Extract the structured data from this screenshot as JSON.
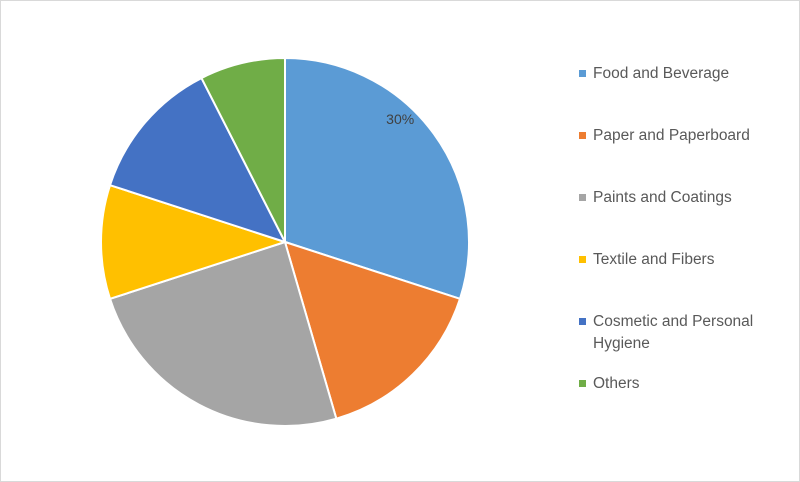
{
  "chart_data": {
    "type": "pie",
    "title": "",
    "legend_position": "right",
    "slices": [
      {
        "label": "Food and Beverage",
        "value": 30,
        "color": "#5b9bd5",
        "data_label": "30%"
      },
      {
        "label": "Paper and Paperboard",
        "value": 15.5,
        "color": "#ed7d31",
        "data_label": ""
      },
      {
        "label": "Paints and Coatings",
        "value": 24.5,
        "color": "#a5a5a5",
        "data_label": ""
      },
      {
        "label": "Textile and Fibers",
        "value": 10,
        "color": "#ffc000",
        "data_label": ""
      },
      {
        "label": "Cosmetic and Personal Hygiene",
        "value": 12.5,
        "color": "#4472c4",
        "data_label": ""
      },
      {
        "label": "Others",
        "value": 7.5,
        "color": "#70ad47",
        "data_label": ""
      }
    ]
  }
}
